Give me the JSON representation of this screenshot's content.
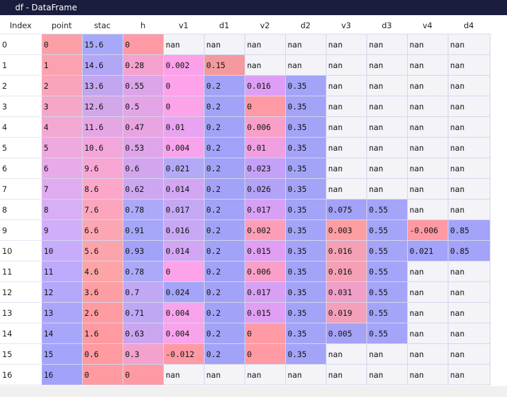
{
  "window": {
    "title": "df - DataFrame"
  },
  "table": {
    "index_header": "Index",
    "columns": [
      "point",
      "stac",
      "h",
      "v1",
      "d1",
      "v2",
      "d2",
      "v3",
      "d3",
      "v4",
      "d4"
    ],
    "rows": [
      {
        "index": "0",
        "cells": [
          "0",
          "15.6",
          "0",
          "nan",
          "nan",
          "nan",
          "nan",
          "nan",
          "nan",
          "nan",
          "nan"
        ],
        "colors": [
          "#fca0a8",
          "#a8a8fa",
          "#ff9aa4",
          "",
          "",
          "",
          "",
          "",
          "",
          "",
          ""
        ]
      },
      {
        "index": "1",
        "cells": [
          "1",
          "14.6",
          "0.28",
          "0.002",
          "0.15",
          "nan",
          "nan",
          "nan",
          "nan",
          "nan",
          "nan"
        ],
        "colors": [
          "#fba2ae",
          "#b2a6f7",
          "#f4a2ce",
          "#fca0e8",
          "#f49a9e",
          "",
          "",
          "",
          "",
          "",
          ""
        ]
      },
      {
        "index": "2",
        "cells": [
          "2",
          "13.6",
          "0.55",
          "0",
          "0.2",
          "0.016",
          "0.35",
          "nan",
          "nan",
          "nan",
          "nan"
        ],
        "colors": [
          "#f9a4ba",
          "#c2a6ef",
          "#dca5ea",
          "#fca3ea",
          "#a2a2f8",
          "#dd9ff5",
          "#a3a3f8",
          "",
          "",
          "",
          ""
        ]
      },
      {
        "index": "3",
        "cells": [
          "3",
          "12.6",
          "0.5",
          "0",
          "0.2",
          "0",
          "0.35",
          "nan",
          "nan",
          "nan",
          "nan"
        ],
        "colors": [
          "#f6a6c6",
          "#d4a6ea",
          "#e3a5e6",
          "#fca3ea",
          "#a2a2f8",
          "#ff9aa4",
          "#a3a3f8",
          "",
          "",
          "",
          ""
        ]
      },
      {
        "index": "4",
        "cells": [
          "4",
          "11.6",
          "0.47",
          "0.01",
          "0.2",
          "0.006",
          "0.35",
          "nan",
          "nan",
          "nan",
          "nan"
        ],
        "colors": [
          "#f3a8d2",
          "#e6a6e4",
          "#e9a4e2",
          "#e8a4f0",
          "#a2a2f8",
          "#f8a0c8",
          "#a3a3f8",
          "",
          "",
          "",
          ""
        ]
      },
      {
        "index": "5",
        "cells": [
          "5",
          "10.6",
          "0.53",
          "0.004",
          "0.2",
          "0.01",
          "0.35",
          "nan",
          "nan",
          "nan",
          "nan"
        ],
        "colors": [
          "#eea9de",
          "#f2a6dc",
          "#dea5e8",
          "#f8a4ec",
          "#a2a2f8",
          "#f0a0e0",
          "#a3a3f8",
          "",
          "",
          "",
          ""
        ]
      },
      {
        "index": "6",
        "cells": [
          "6",
          "9.6",
          "0.6",
          "0.021",
          "0.2",
          "0.023",
          "0.35",
          "nan",
          "nan",
          "nan",
          "nan"
        ],
        "colors": [
          "#e8aae8",
          "#f8a6d4",
          "#d2a6ee",
          "#b2aaf6",
          "#a2a2f8",
          "#c4a0f8",
          "#a3a3f8",
          "",
          "",
          "",
          ""
        ]
      },
      {
        "index": "7",
        "cells": [
          "7",
          "8.6",
          "0.62",
          "0.014",
          "0.2",
          "0.026",
          "0.35",
          "nan",
          "nan",
          "nan",
          "nan"
        ],
        "colors": [
          "#dfacef",
          "#fca6c8",
          "#cea6f0",
          "#d2a6f2",
          "#a2a2f8",
          "#b2a2f8",
          "#a3a3f8",
          "",
          "",
          "",
          ""
        ]
      },
      {
        "index": "8",
        "cells": [
          "8",
          "7.6",
          "0.78",
          "0.017",
          "0.2",
          "0.017",
          "0.35",
          "0.075",
          "0.55",
          "nan",
          "nan"
        ],
        "colors": [
          "#d8aef6",
          "#fca6be",
          "#acaaf8",
          "#c4a8f4",
          "#a2a2f8",
          "#d8a0f4",
          "#a3a3f8",
          "#a2a2f8",
          "#a4a4f8",
          "",
          ""
        ]
      },
      {
        "index": "9",
        "cells": [
          "9",
          "6.6",
          "0.91",
          "0.016",
          "0.2",
          "0.002",
          "0.35",
          "0.003",
          "0.55",
          "-0.006",
          "0.85"
        ],
        "colors": [
          "#d0aefa",
          "#fca6b4",
          "#a6a6f8",
          "#c8a8f4",
          "#a2a2f8",
          "#fc9eb8",
          "#a3a3f8",
          "#fc9ea2",
          "#a4a4f8",
          "#ff9aa4",
          "#a3a3fa"
        ]
      },
      {
        "index": "10",
        "cells": [
          "10",
          "5.6",
          "0.93",
          "0.014",
          "0.2",
          "0.015",
          "0.35",
          "0.016",
          "0.55",
          "0.021",
          "0.85"
        ],
        "colors": [
          "#c6acfa",
          "#fca4ac",
          "#a2a2f8",
          "#d2a6f2",
          "#a2a2f8",
          "#e09ff2",
          "#a3a3f8",
          "#f6a0b6",
          "#a4a4f8",
          "#a3a3fa",
          "#a3a3fa"
        ]
      },
      {
        "index": "11",
        "cells": [
          "11",
          "4.6",
          "0.78",
          "0",
          "0.2",
          "0.006",
          "0.35",
          "0.016",
          "0.55",
          "nan",
          "nan"
        ],
        "colors": [
          "#bcaafa",
          "#fca4a6",
          "#acaaf8",
          "#fca3ea",
          "#a2a2f8",
          "#f8a0c8",
          "#a3a3f8",
          "#f6a0b6",
          "#a4a4f8",
          "",
          ""
        ]
      },
      {
        "index": "12",
        "cells": [
          "12",
          "3.6",
          "0.7",
          "0.024",
          "0.2",
          "0.017",
          "0.35",
          "0.031",
          "0.55",
          "nan",
          "nan"
        ],
        "colors": [
          "#b4a8fa",
          "#fc9ea4",
          "#c0a8f4",
          "#a4a4f8",
          "#a2a2f8",
          "#d8a0f4",
          "#a3a3f8",
          "#f0a0c8",
          "#a4a4f8",
          "",
          ""
        ]
      },
      {
        "index": "13",
        "cells": [
          "13",
          "2.6",
          "0.71",
          "0.004",
          "0.2",
          "0.015",
          "0.35",
          "0.019",
          "0.55",
          "nan",
          "nan"
        ],
        "colors": [
          "#aca6fa",
          "#fe9ca2",
          "#bea8f4",
          "#f8a4ec",
          "#a2a2f8",
          "#e09ff2",
          "#a3a3f8",
          "#f4a0ba",
          "#a4a4f8",
          "",
          ""
        ]
      },
      {
        "index": "14",
        "cells": [
          "14",
          "1.6",
          "0.63",
          "0.004",
          "0.2",
          "0",
          "0.35",
          "0.005",
          "0.55",
          "nan",
          "nan"
        ],
        "colors": [
          "#a8a6fa",
          "#ff9aa0",
          "#caa6f0",
          "#f8a4ec",
          "#a2a2f8",
          "#ff9aa4",
          "#a3a3f8",
          "#a6a2f6",
          "#a4a4f8",
          "",
          ""
        ]
      },
      {
        "index": "15",
        "cells": [
          "15",
          "0.6",
          "0.3",
          "-0.012",
          "0.2",
          "0",
          "0.35",
          "nan",
          "nan",
          "nan",
          "nan"
        ],
        "colors": [
          "#a4a4fa",
          "#ff9aa0",
          "#f2a2cc",
          "#ff9aa4",
          "#a2a2f8",
          "#ff9aa4",
          "#a3a3f8",
          "",
          "",
          "",
          ""
        ]
      },
      {
        "index": "16",
        "cells": [
          "16",
          "0",
          "0",
          "nan",
          "nan",
          "nan",
          "nan",
          "nan",
          "nan",
          "nan",
          "nan"
        ],
        "colors": [
          "#a2a2fa",
          "#ff9aa0",
          "#ff9aa4",
          "",
          "",
          "",
          "",
          "",
          "",
          "",
          ""
        ]
      }
    ]
  }
}
